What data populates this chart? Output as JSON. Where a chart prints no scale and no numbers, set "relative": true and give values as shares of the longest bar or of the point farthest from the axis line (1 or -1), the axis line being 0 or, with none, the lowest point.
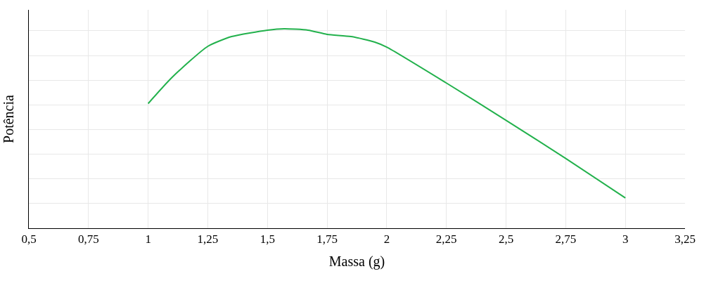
{
  "chart_data": {
    "type": "line",
    "relative": true,
    "xlabel": "Massa (g)",
    "ylabel": "Potência",
    "xlim": [
      0.5,
      3.25
    ],
    "xticks": [
      {
        "value": 0.5,
        "label": "0,5"
      },
      {
        "value": 0.75,
        "label": "0,75"
      },
      1,
      {
        "value": 1.25,
        "label": "1,25"
      },
      {
        "value": 1.5,
        "label": "1,5"
      },
      {
        "value": 1.75,
        "label": "1,75"
      },
      2,
      {
        "value": 2.25,
        "label": "2,25"
      },
      {
        "value": 2.5,
        "label": "2,5"
      },
      {
        "value": 2.75,
        "label": "2,75"
      },
      3,
      {
        "value": 3.25,
        "label": "3,25"
      }
    ],
    "x": [
      1,
      1.1,
      1.25,
      1.35,
      1.5,
      1.57,
      1.67,
      1.75,
      1.85,
      1.95,
      2,
      2.25,
      2.5,
      2.75,
      3
    ],
    "series": [
      {
        "color": "#22b14c",
        "values": [
          0.625,
          0.756,
          0.912,
          0.961,
          0.993,
          1.0,
          0.993,
          0.972,
          0.961,
          0.933,
          0.908,
          0.728,
          0.541,
          0.35,
          0.152
        ]
      }
    ],
    "grid": true,
    "marker": "none",
    "line_style": "solid",
    "tick_labels": "x"
  }
}
